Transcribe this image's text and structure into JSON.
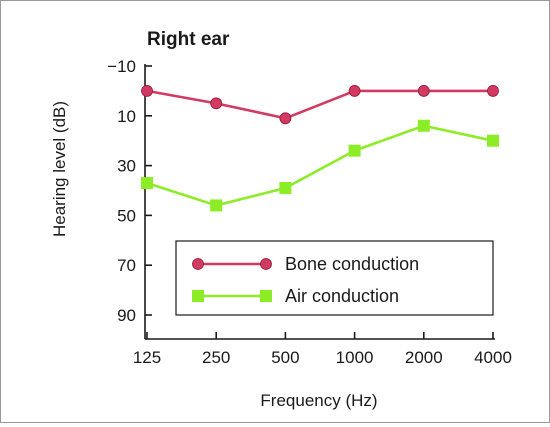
{
  "chart_data": {
    "type": "line",
    "title": "Right ear",
    "xlabel": "Frequency (Hz)",
    "ylabel": "Hearing level (dB)",
    "categories": [
      "125",
      "250",
      "500",
      "1000",
      "2000",
      "4000"
    ],
    "ylim": [
      -10,
      100
    ],
    "y_inverted": true,
    "y_ticks": [
      "−10",
      "10",
      "30",
      "50",
      "70",
      "90"
    ],
    "y_tick_values": [
      -10,
      10,
      30,
      50,
      70,
      90
    ],
    "grid": false,
    "legend_position": "lower-right",
    "series": [
      {
        "name": "Bone conduction",
        "values": [
          0,
          5,
          11,
          0,
          0,
          0
        ],
        "color": "#d23a62",
        "marker": "circle"
      },
      {
        "name": "Air conduction",
        "values": [
          37,
          46,
          39,
          24,
          14,
          20
        ],
        "color": "#8ced26",
        "marker": "square"
      }
    ]
  }
}
